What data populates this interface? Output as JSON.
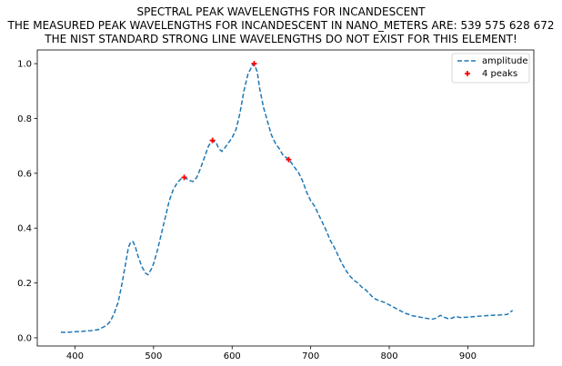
{
  "chart_data": {
    "type": "line",
    "title_lines": [
      "SPECTRAL PEAK WAVELENGTHS FOR INCANDESCENT",
      "THE MEASURED PEAK WAVELENGTHS FOR INCANDESCENT IN NANO_METERS ARE: 539 575 628 672",
      "THE NIST STANDARD STRONG LINE WAVELENGTHS DO NOT EXIST FOR THIS ELEMENT!"
    ],
    "xlabel": "",
    "ylabel": "",
    "xlim": [
      352,
      984
    ],
    "ylim": [
      -0.03,
      1.05
    ],
    "xticks": [
      400,
      500,
      600,
      700,
      800,
      900
    ],
    "yticks": [
      0.0,
      0.2,
      0.4,
      0.6,
      0.8,
      1.0
    ],
    "grid": false,
    "legend_position": "top-right",
    "series": [
      {
        "name": "amplitude",
        "style": "dashed-line",
        "color": "#1f77b4",
        "x": [
          382,
          390,
          400,
          410,
          420,
          430,
          440,
          445,
          450,
          455,
          460,
          465,
          468,
          471,
          474,
          477,
          480,
          485,
          490,
          493,
          497,
          500,
          505,
          510,
          515,
          520,
          525,
          530,
          535,
          539,
          545,
          550,
          555,
          560,
          565,
          570,
          575,
          580,
          583,
          587,
          590,
          595,
          600,
          605,
          610,
          615,
          620,
          625,
          628,
          632,
          635,
          640,
          645,
          650,
          655,
          660,
          665,
          670,
          672,
          675,
          680,
          685,
          690,
          695,
          700,
          705,
          710,
          715,
          720,
          725,
          730,
          735,
          740,
          745,
          750,
          755,
          760,
          765,
          770,
          775,
          780,
          785,
          790,
          795,
          800,
          810,
          820,
          830,
          840,
          845,
          850,
          855,
          860,
          865,
          870,
          875,
          880,
          885,
          890,
          900,
          910,
          920,
          930,
          940,
          950,
          957
        ],
        "y": [
          0.02,
          0.02,
          0.022,
          0.024,
          0.026,
          0.03,
          0.045,
          0.06,
          0.09,
          0.13,
          0.2,
          0.28,
          0.33,
          0.35,
          0.35,
          0.33,
          0.3,
          0.26,
          0.235,
          0.23,
          0.25,
          0.27,
          0.32,
          0.38,
          0.44,
          0.5,
          0.54,
          0.565,
          0.58,
          0.585,
          0.575,
          0.57,
          0.585,
          0.62,
          0.66,
          0.7,
          0.72,
          0.71,
          0.69,
          0.68,
          0.69,
          0.71,
          0.73,
          0.76,
          0.82,
          0.9,
          0.96,
          0.99,
          1.0,
          0.97,
          0.91,
          0.84,
          0.79,
          0.74,
          0.71,
          0.69,
          0.665,
          0.655,
          0.65,
          0.64,
          0.62,
          0.6,
          0.57,
          0.53,
          0.5,
          0.48,
          0.45,
          0.42,
          0.39,
          0.355,
          0.33,
          0.3,
          0.27,
          0.245,
          0.225,
          0.21,
          0.2,
          0.185,
          0.175,
          0.16,
          0.145,
          0.138,
          0.133,
          0.128,
          0.12,
          0.105,
          0.09,
          0.08,
          0.075,
          0.072,
          0.07,
          0.068,
          0.072,
          0.082,
          0.075,
          0.07,
          0.072,
          0.078,
          0.074,
          0.075,
          0.078,
          0.08,
          0.082,
          0.083,
          0.085,
          0.1
        ]
      },
      {
        "name": "4 peaks",
        "style": "markers",
        "marker": "+",
        "color": "#ff0000",
        "x": [
          539,
          575,
          628,
          672
        ],
        "y": [
          0.585,
          0.72,
          1.0,
          0.65
        ]
      }
    ]
  }
}
